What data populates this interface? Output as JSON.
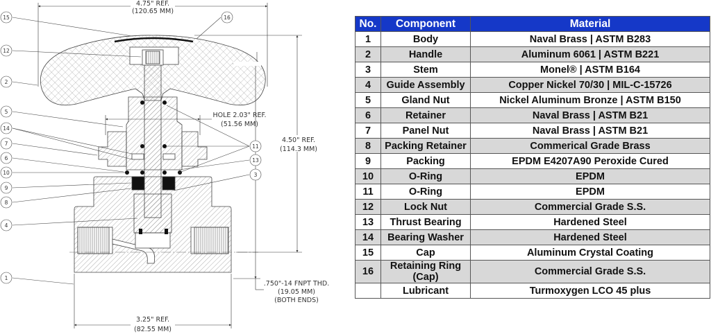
{
  "drawing": {
    "dimensions": {
      "top_width": "4.75\" REF.",
      "top_width_mm": "(120.65 MM)",
      "hole": "HOLE 2.03\" REF.",
      "hole_mm": "(51.56 MM)",
      "height": "4.50\" REF.",
      "height_mm": "(114.3 MM)",
      "thread": ".750\"-14 FNPT THD.",
      "thread_mm": "(19.05 MM)",
      "thread_note": "(BOTH ENDS)",
      "bottom_width": "3.25\" REF.",
      "bottom_width_mm": "(82.55 MM)"
    },
    "callouts_left": [
      "15",
      "12",
      "2",
      "5",
      "14",
      "7",
      "6",
      "10",
      "9",
      "8",
      "4",
      "1"
    ],
    "callouts_right": [
      "16",
      "11",
      "13",
      "3"
    ]
  },
  "table": {
    "headers": [
      "No.",
      "Component",
      "Material"
    ],
    "header_color": "#1538c8",
    "rows": [
      {
        "no": "1",
        "component": "Body",
        "material": "Naval Brass | ASTM B283"
      },
      {
        "no": "2",
        "component": "Handle",
        "material": "Aluminum 6061 | ASTM B221"
      },
      {
        "no": "3",
        "component": "Stem",
        "material": "Monel® | ASTM B164"
      },
      {
        "no": "4",
        "component": "Guide Assembly",
        "material": "Copper Nickel 70/30 | MIL-C-15726"
      },
      {
        "no": "5",
        "component": "Gland Nut",
        "material": "Nickel Aluminum Bronze | ASTM B150"
      },
      {
        "no": "6",
        "component": "Retainer",
        "material": "Naval Brass | ASTM B21"
      },
      {
        "no": "7",
        "component": "Panel Nut",
        "material": "Naval Brass | ASTM B21"
      },
      {
        "no": "8",
        "component": "Packing Retainer",
        "material": "Commerical Grade Brass"
      },
      {
        "no": "9",
        "component": "Packing",
        "material": "EPDM E4207A90 Peroxide Cured"
      },
      {
        "no": "10",
        "component": "O-Ring",
        "material": "EPDM"
      },
      {
        "no": "11",
        "component": "O-Ring",
        "material": "EPDM"
      },
      {
        "no": "12",
        "component": "Lock Nut",
        "material": "Commercial Grade S.S."
      },
      {
        "no": "13",
        "component": "Thrust Bearing",
        "material": "Hardened Steel"
      },
      {
        "no": "14",
        "component": "Bearing Washer",
        "material": "Hardened Steel"
      },
      {
        "no": "15",
        "component": "Cap",
        "material": "Aluminum Crystal Coating"
      },
      {
        "no": "16",
        "component": "Retaining Ring (Cap)",
        "material": "Commercial Grade S.S."
      },
      {
        "no": "",
        "component": "Lubricant",
        "material": "Turmoxygen LCO 45 plus"
      }
    ]
  }
}
